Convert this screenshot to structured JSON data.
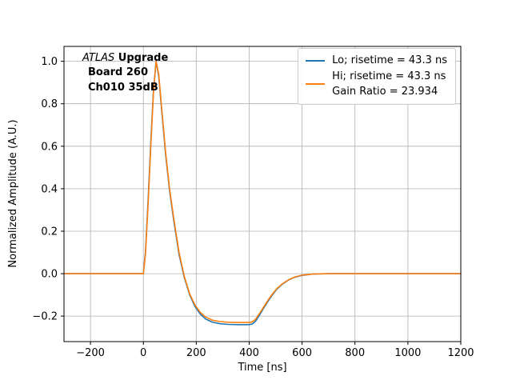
{
  "figure": {
    "background": "#ffffff",
    "annotation": {
      "line1_italic": "ATLAS",
      "line1_bold": " Upgrade",
      "line2": "Board 260",
      "line3": "Ch010 35dB"
    }
  },
  "chart_data": {
    "type": "line",
    "title": "",
    "xlabel": "Time [ns]",
    "ylabel": "Normalized Amplitude (A.U.)",
    "xlim": [
      -300,
      1200
    ],
    "ylim": [
      -0.32,
      1.07
    ],
    "grid": true,
    "grid_color": "#b0b0b0",
    "legend_position": "upper right",
    "xticks": [
      -200,
      0,
      200,
      400,
      600,
      800,
      1000,
      1200
    ],
    "xtick_labels": [
      "−200",
      "0",
      "200",
      "400",
      "600",
      "800",
      "1000",
      "1200"
    ],
    "yticks": [
      -0.2,
      0.0,
      0.2,
      0.4,
      0.6,
      0.8,
      1.0
    ],
    "ytick_labels": [
      "−0.2",
      "0.0",
      "0.2",
      "0.4",
      "0.6",
      "0.8",
      "1.0"
    ],
    "x": [
      -300,
      -100,
      -10,
      0,
      8,
      18,
      28,
      38,
      48,
      58,
      70,
      85,
      100,
      115,
      135,
      155,
      175,
      195,
      215,
      235,
      260,
      290,
      320,
      360,
      400,
      412,
      424,
      438,
      452,
      468,
      485,
      505,
      525,
      550,
      575,
      600,
      640,
      700,
      800,
      1000,
      1200
    ],
    "series": [
      {
        "name": "Lo",
        "label": "Lo; risetime = 43.3 ns",
        "color": "#1f77b4",
        "values": [
          0,
          0,
          0,
          0,
          0.1,
          0.35,
          0.62,
          0.86,
          1.0,
          0.93,
          0.76,
          0.55,
          0.38,
          0.25,
          0.09,
          -0.02,
          -0.1,
          -0.155,
          -0.19,
          -0.213,
          -0.228,
          -0.236,
          -0.239,
          -0.24,
          -0.24,
          -0.237,
          -0.224,
          -0.198,
          -0.168,
          -0.136,
          -0.104,
          -0.073,
          -0.05,
          -0.029,
          -0.016,
          -0.008,
          -0.002,
          0,
          0,
          0,
          0
        ]
      },
      {
        "name": "Hi",
        "label": "Hi; risetime = 43.3 ns\nGain Ratio = 23.934",
        "color": "#ff7f0e",
        "values": [
          0,
          0,
          0,
          0,
          0.09,
          0.33,
          0.6,
          0.85,
          1.0,
          0.94,
          0.77,
          0.56,
          0.39,
          0.26,
          0.1,
          -0.015,
          -0.095,
          -0.148,
          -0.182,
          -0.204,
          -0.219,
          -0.226,
          -0.229,
          -0.23,
          -0.23,
          -0.227,
          -0.215,
          -0.19,
          -0.162,
          -0.131,
          -0.1,
          -0.07,
          -0.048,
          -0.028,
          -0.015,
          -0.007,
          -0.002,
          0,
          0,
          0,
          0
        ]
      }
    ],
    "legend": [
      {
        "series": "Lo",
        "color": "#1f77b4",
        "lines": [
          "Lo; risetime = 43.3 ns"
        ]
      },
      {
        "series": "Hi",
        "color": "#ff7f0e",
        "lines": [
          "Hi; risetime = 43.3 ns",
          "Gain Ratio = 23.934"
        ]
      }
    ]
  }
}
